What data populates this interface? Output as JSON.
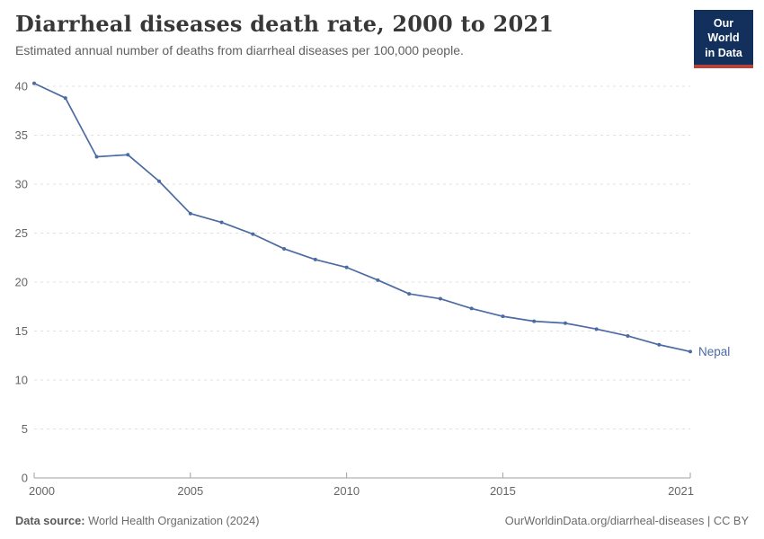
{
  "logo": {
    "line1": "Our World",
    "line2": "in Data"
  },
  "chart_data": {
    "type": "line",
    "title": "Diarrheal diseases death rate, 2000 to 2021",
    "subtitle": "Estimated annual number of deaths from diarrheal diseases per 100,000 people.",
    "x": [
      2000,
      2001,
      2002,
      2003,
      2004,
      2005,
      2006,
      2007,
      2008,
      2009,
      2010,
      2011,
      2012,
      2013,
      2014,
      2015,
      2016,
      2017,
      2018,
      2019,
      2020,
      2021
    ],
    "series": [
      {
        "name": "Nepal",
        "color": "#4c6ba3",
        "values": [
          40.3,
          38.8,
          32.8,
          33.0,
          30.3,
          27.0,
          26.1,
          24.9,
          23.4,
          22.3,
          21.5,
          20.2,
          18.8,
          18.3,
          17.3,
          16.5,
          16.0,
          15.8,
          15.2,
          14.5,
          13.6,
          12.9
        ]
      }
    ],
    "ylim": [
      0,
      40
    ],
    "yticks": [
      0,
      5,
      10,
      15,
      20,
      25,
      30,
      35,
      40
    ],
    "xticks": [
      2000,
      2005,
      2010,
      2015,
      2021
    ],
    "xlabel": "",
    "ylabel": "",
    "grid": "dashed-horizontal",
    "legend_position": "end-of-line"
  },
  "footer": {
    "source_label": "Data source:",
    "source_value": "World Health Organization (2024)",
    "right_text": "OurWorldinData.org/diarrheal-diseases | CC BY"
  },
  "colors": {
    "line": "#4c6ba3",
    "logo_bg": "#12305b",
    "logo_accent": "#b5433c",
    "grid": "#e0e0e0",
    "axis": "#a1a1a1",
    "tick_label": "#666666"
  }
}
